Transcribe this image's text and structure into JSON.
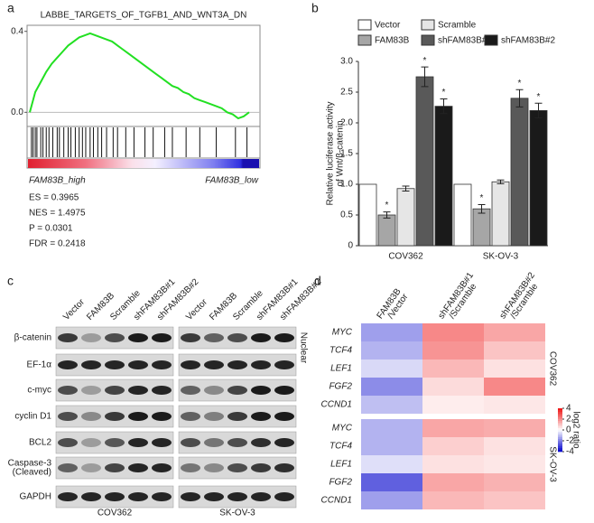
{
  "panel_labels": [
    "a",
    "b",
    "c",
    "d"
  ],
  "chart_data": [
    {
      "type": "line",
      "title": "LABBE_TARGETS_OF_TGFB1_AND_WNT3A_DN",
      "color": "#22e022",
      "values": [
        0.0,
        0.1,
        0.15,
        0.2,
        0.24,
        0.27,
        0.3,
        0.33,
        0.35,
        0.37,
        0.38,
        0.39,
        0.38,
        0.37,
        0.36,
        0.35,
        0.33,
        0.31,
        0.29,
        0.27,
        0.25,
        0.23,
        0.21,
        0.19,
        0.17,
        0.15,
        0.13,
        0.12,
        0.1,
        0.09,
        0.07,
        0.06,
        0.05,
        0.04,
        0.03,
        0.02,
        0.0,
        -0.01,
        -0.03,
        -0.02,
        0.0
      ],
      "hits": [
        0.3,
        0.6,
        1,
        1.3,
        2,
        2.4,
        3,
        3.5,
        4.2,
        5,
        5.4,
        6.2,
        7,
        7.5,
        8.3,
        9,
        9.6,
        10.2,
        11,
        11.6,
        12.4,
        13.1,
        14,
        15.2,
        16,
        17.5,
        19,
        21,
        22.5,
        24.6,
        26,
        28.5,
        31,
        34,
        37.5,
        39.6
      ],
      "ylim": [
        -0.07,
        0.43
      ],
      "yticks": [
        {
          "value": 0.4,
          "label": "0.4"
        },
        {
          "value": 0,
          "label": "0.0"
        }
      ],
      "annotations": [
        "FAM83B_high",
        "FAM83B_low"
      ],
      "stats": [
        "ES = 0.3965",
        "NES = 1.4975",
        "P = 0.0301",
        "FDR = 0.2418"
      ]
    },
    {
      "type": "bar",
      "categories": [
        "COV362",
        "SK-OV-3"
      ],
      "ylabel": [
        "Relative luciferase activity",
        "of Wnt/β-catenin"
      ],
      "ylim": [
        0,
        3.0
      ],
      "yticks": [
        0,
        0.5,
        {
          "value": 1,
          "label": "1.0"
        },
        1.5,
        {
          "value": 2,
          "label": "2.0"
        },
        2.5,
        {
          "value": 3,
          "label": "3.0"
        }
      ],
      "series": [
        {
          "name": "Vector",
          "color": "#ffffff",
          "values": [
            1,
            1
          ]
        },
        {
          "name": "FAM83B",
          "color": "#a6a6a6",
          "values": [
            0.5,
            0.6
          ],
          "errors": [
            0.05,
            0.07
          ],
          "labels": [
            "*",
            "*"
          ]
        },
        {
          "name": "Scramble",
          "color": "#e6e6e6",
          "values": [
            0.93,
            1.04
          ],
          "errors": [
            0.04,
            0.03
          ]
        },
        {
          "name": "shFAM83B#1",
          "color": "#595959",
          "values": [
            2.75,
            2.4
          ],
          "errors": [
            0.16,
            0.14
          ],
          "labels": [
            "*",
            "*"
          ]
        },
        {
          "name": "shFAM83B#2",
          "color": "#1a1a1a",
          "values": [
            2.27,
            2.2
          ],
          "errors": [
            0.12,
            0.12
          ],
          "labels": [
            "*",
            "*"
          ]
        }
      ]
    },
    {
      "type": "heatmap",
      "columns": [
        [
          "FAM83B",
          "/Vector"
        ],
        [
          "shFAM83B#1",
          "/Scramble"
        ],
        [
          "shFAM83B#2",
          "/Scramble"
        ]
      ],
      "groups": [
        "COV362",
        "SK-OV-3"
      ],
      "rows": [
        "MYC",
        "TCF4",
        "LEF1",
        "FGF2",
        "CCND1",
        "MYC",
        "TCF4",
        "LEF1",
        "FGF2",
        "CCND1"
      ],
      "values": [
        [
          -1.5,
          2,
          1.5
        ],
        [
          -1.2,
          1.8,
          1.0
        ],
        [
          -0.6,
          1.2,
          0.5
        ],
        [
          -1.8,
          0.6,
          2.0
        ],
        [
          -1.0,
          0.3,
          0.4
        ],
        [
          -1.2,
          1.5,
          1.4
        ],
        [
          -1.2,
          0.8,
          0.5
        ],
        [
          -0.5,
          0.5,
          0.4
        ],
        [
          -2.5,
          1.5,
          1.3
        ],
        [
          -1.5,
          1.2,
          1.0
        ]
      ],
      "colors": [
        "#0000cc",
        "#ffffff",
        "#ee1111"
      ],
      "zlim": [
        -4,
        4
      ],
      "zticks": [
        4,
        2,
        0,
        -2,
        -4
      ],
      "zlabel": "log2 ratio"
    }
  ],
  "blot": {
    "lanes": [
      "Vector",
      "FAM83B",
      "Scramble",
      "shFAM83B#1",
      "shFAM83B#2"
    ],
    "rows": [
      [
        "β-catenin"
      ],
      [
        "EF-1α"
      ],
      [
        "c-myc"
      ],
      [
        "cyclin D1"
      ],
      [
        "BCL2"
      ],
      [
        "Caspase-3",
        "(Cleaved)"
      ],
      [
        "GAPDH"
      ]
    ],
    "groups": [
      "COV362",
      "SK-OV-3"
    ],
    "note": "Nuclear"
  }
}
